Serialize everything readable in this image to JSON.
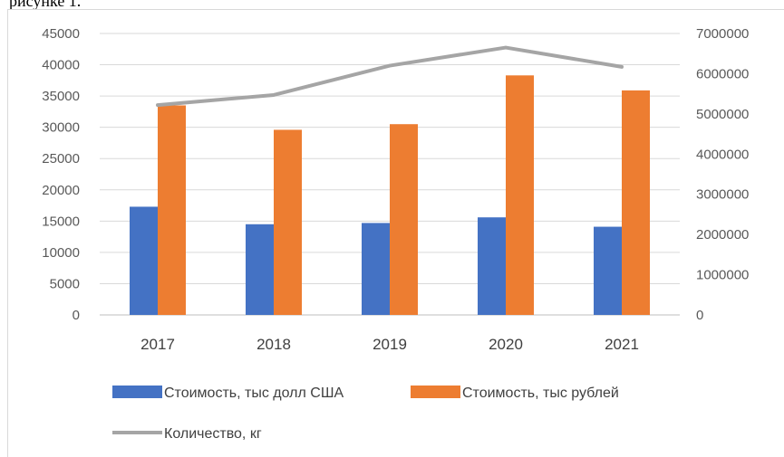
{
  "caption_fragment": "рисунке 1.",
  "chart_data": {
    "type": "bar",
    "categories": [
      "2017",
      "2018",
      "2019",
      "2020",
      "2021"
    ],
    "series": [
      {
        "name": "Стоимость, тыс долл США",
        "type": "bar",
        "axis": "left",
        "color": "#4472c4",
        "values": [
          17300,
          14500,
          14700,
          15600,
          14100
        ]
      },
      {
        "name": "Стоимость, тыс рублей",
        "type": "bar",
        "axis": "left",
        "color": "#ed7d31",
        "values": [
          33500,
          29600,
          30500,
          38300,
          35900
        ]
      },
      {
        "name": "Количество, кг",
        "type": "line",
        "axis": "right",
        "color": "#a5a5a5",
        "values": [
          5220000,
          5470000,
          6200000,
          6650000,
          6170000
        ]
      }
    ],
    "ylim_left": [
      0,
      45000
    ],
    "yticks_left": [
      "45000",
      "40000",
      "35000",
      "30000",
      "25000",
      "20000",
      "15000",
      "10000",
      "5000",
      "0"
    ],
    "ylim_right": [
      0,
      7000000
    ],
    "yticks_right": [
      "7000000",
      "6000000",
      "5000000",
      "4000000",
      "3000000",
      "2000000",
      "1000000",
      "0"
    ],
    "grid": true,
    "legend_position": "bottom"
  }
}
